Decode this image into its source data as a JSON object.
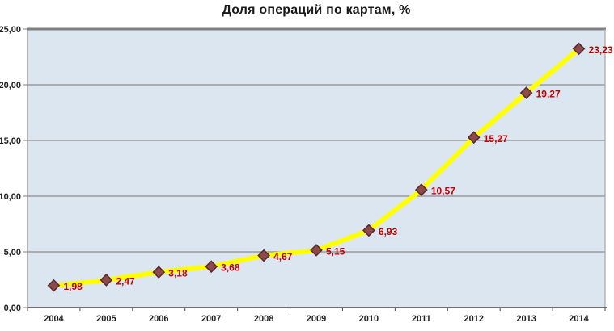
{
  "chart_data": {
    "type": "line",
    "title": "Доля операций по картам, %",
    "xlabel": "",
    "ylabel": "",
    "legend": "none",
    "grid": true,
    "ylim": [
      0,
      25
    ],
    "ytick_step": 5,
    "ytick_labels": [
      "0,00",
      "5,00",
      "10,00",
      "15,00",
      "20,00",
      "25,00"
    ],
    "categories": [
      "2004",
      "2005",
      "2006",
      "2007",
      "2008",
      "2009",
      "2010",
      "2011",
      "2012",
      "2013",
      "2014"
    ],
    "series": [
      {
        "name": "Доля операций по картам, %",
        "values": [
          1.98,
          2.47,
          3.18,
          3.68,
          4.67,
          5.15,
          6.93,
          10.57,
          15.27,
          19.27,
          23.23
        ],
        "labels": [
          "1,98",
          "2,47",
          "3,18",
          "3,68",
          "4,67",
          "5,15",
          "6,93",
          "10,57",
          "15,27",
          "19,27",
          "23,23"
        ]
      }
    ],
    "colors": {
      "plot_bg": "#dce6f1",
      "grid": "#8c8c8c",
      "border_top": "#7f7f7f",
      "border_right": "#a6a6a6",
      "axis_y": "#7f7f7f",
      "axis_x": "#4a4a4a",
      "line": "#ffff00",
      "marker_fill": "#8c4a4c",
      "marker_edge": "#5a262a",
      "data_label": "#c00000",
      "axis_text": "#1f1f1f"
    }
  }
}
